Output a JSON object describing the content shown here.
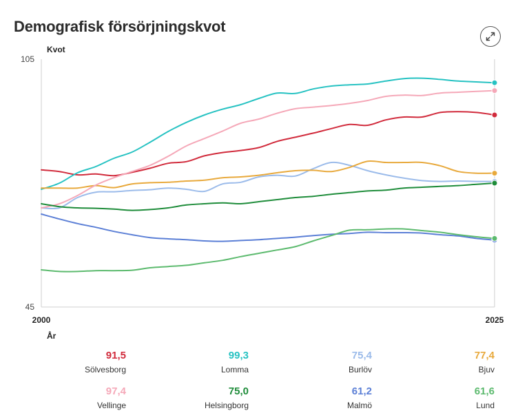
{
  "title": "Demografisk försörjningskvot",
  "icons": {
    "expand": "expand-arrows-icon"
  },
  "chart_data": {
    "type": "line",
    "title": "Demografisk försörjningskvot",
    "ylabel": "Kvot",
    "xlabel": "År",
    "ylim": [
      45,
      105
    ],
    "xlim": [
      2000,
      2025
    ],
    "y_ticks": [
      "105",
      "45"
    ],
    "x_ticks": [
      "2000",
      "2025"
    ],
    "grid": false,
    "legend_placement": "bottom",
    "x": [
      2000,
      2001,
      2002,
      2003,
      2004,
      2005,
      2006,
      2007,
      2008,
      2009,
      2010,
      2011,
      2012,
      2013,
      2014,
      2015,
      2016,
      2017,
      2018,
      2019,
      2020,
      2021,
      2022,
      2023,
      2024,
      2025
    ],
    "series": [
      {
        "name": "Sölvesborg",
        "label": "91,5",
        "color": "#d12b3c",
        "values": [
          78.2,
          77.8,
          77.0,
          77.2,
          76.8,
          77.6,
          78.6,
          79.8,
          80.2,
          81.6,
          82.4,
          82.9,
          83.6,
          85.1,
          86.1,
          87.1,
          88.2,
          89.2,
          89.0,
          90.3,
          91.0,
          91.0,
          92.1,
          92.3,
          92.1,
          91.5
        ]
      },
      {
        "name": "Lomma",
        "label": "99,3",
        "color": "#26c2c2",
        "values": [
          73.5,
          75.0,
          77.5,
          79.0,
          81.0,
          82.5,
          84.9,
          87.5,
          89.7,
          91.5,
          92.9,
          94.0,
          95.5,
          96.8,
          96.7,
          97.8,
          98.5,
          98.8,
          99.0,
          99.7,
          100.3,
          100.4,
          100.1,
          99.7,
          99.5,
          99.3
        ]
      },
      {
        "name": "Burlöv",
        "label": "75,4",
        "color": "#9bbbea",
        "values": [
          69.0,
          69.0,
          71.5,
          72.8,
          72.9,
          73.2,
          73.4,
          73.8,
          73.5,
          73.0,
          74.8,
          75.2,
          76.5,
          76.9,
          76.7,
          78.5,
          80.0,
          79.3,
          78.0,
          77.0,
          76.2,
          75.6,
          75.4,
          75.5,
          75.4,
          75.4
        ]
      },
      {
        "name": "Bjuv",
        "label": "77,4",
        "color": "#e8a93c",
        "values": [
          73.8,
          73.8,
          73.8,
          74.4,
          73.9,
          74.8,
          75.1,
          75.2,
          75.5,
          75.7,
          76.3,
          76.5,
          76.9,
          77.5,
          78.0,
          78.1,
          77.8,
          78.8,
          80.3,
          80.0,
          80.0,
          80.0,
          79.2,
          77.8,
          77.4,
          77.4
        ]
      },
      {
        "name": "Vellinge",
        "label": "97,4",
        "color": "#f5a8b8",
        "values": [
          69.0,
          70.0,
          72.0,
          74.5,
          76.3,
          77.8,
          79.3,
          81.5,
          84.0,
          85.8,
          87.6,
          89.5,
          90.5,
          91.9,
          93.0,
          93.4,
          93.8,
          94.3,
          95.0,
          96.0,
          96.3,
          96.2,
          96.8,
          97.0,
          97.2,
          97.4
        ]
      },
      {
        "name": "Helsingborg",
        "label": "75,0",
        "color": "#1e8c3a",
        "values": [
          70.0,
          69.3,
          69.0,
          68.9,
          68.7,
          68.4,
          68.6,
          69.0,
          69.7,
          70.0,
          70.2,
          70.0,
          70.5,
          71.0,
          71.5,
          71.8,
          72.3,
          72.7,
          73.1,
          73.3,
          73.8,
          74.0,
          74.2,
          74.4,
          74.7,
          75.0
        ]
      },
      {
        "name": "Malmö",
        "label": "61,2",
        "color": "#5b7fd6",
        "values": [
          67.5,
          66.3,
          65.2,
          64.3,
          63.3,
          62.5,
          61.8,
          61.5,
          61.3,
          61.0,
          60.9,
          61.1,
          61.3,
          61.6,
          61.9,
          62.3,
          62.6,
          62.8,
          63.1,
          63.0,
          63.0,
          62.9,
          62.5,
          62.2,
          61.6,
          61.2
        ]
      },
      {
        "name": "Lund",
        "label": "61,6",
        "color": "#5cba6e",
        "values": [
          54.0,
          53.6,
          53.6,
          53.8,
          53.8,
          53.9,
          54.5,
          54.8,
          55.1,
          55.7,
          56.3,
          57.2,
          58.0,
          58.8,
          59.6,
          61.0,
          62.3,
          63.6,
          63.7,
          63.9,
          63.9,
          63.5,
          63.1,
          62.5,
          62.0,
          61.6
        ]
      }
    ]
  }
}
